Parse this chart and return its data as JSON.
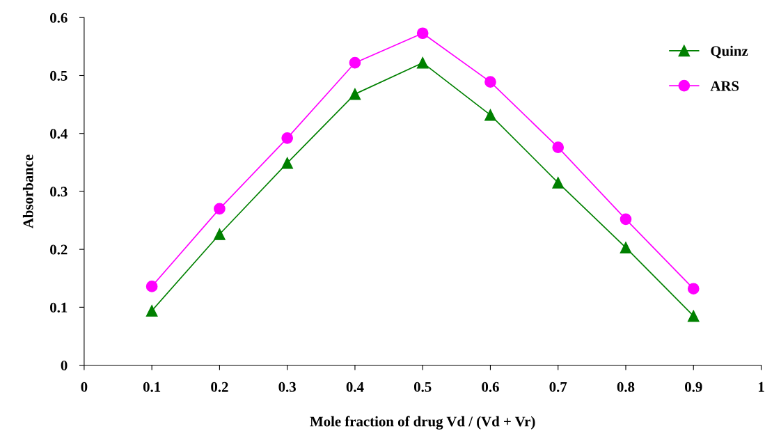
{
  "chart_data": {
    "type": "line",
    "xlabel": "Mole fraction of drug Vd / (Vd + Vr)",
    "ylabel": "Absorbance",
    "x": [
      0.1,
      0.2,
      0.3,
      0.4,
      0.5,
      0.6,
      0.7,
      0.8,
      0.9
    ],
    "series": [
      {
        "name": "Quinz",
        "color": "#008000",
        "marker": "triangle",
        "values": [
          0.094,
          0.226,
          0.349,
          0.468,
          0.522,
          0.432,
          0.315,
          0.203,
          0.085
        ]
      },
      {
        "name": "ARS",
        "color": "#ff00ff",
        "marker": "circle",
        "values": [
          0.136,
          0.27,
          0.392,
          0.522,
          0.573,
          0.489,
          0.376,
          0.252,
          0.132
        ]
      }
    ],
    "xlim": [
      0,
      1
    ],
    "xticks": [
      0,
      0.1,
      0.2,
      0.3,
      0.4,
      0.5,
      0.6,
      0.7,
      0.8,
      0.9,
      1
    ],
    "ylim": [
      0,
      0.6
    ],
    "yticks": [
      0,
      0.1,
      0.2,
      0.3,
      0.4,
      0.5,
      0.6
    ],
    "grid": false,
    "legend": "right",
    "line_style": "solid"
  }
}
